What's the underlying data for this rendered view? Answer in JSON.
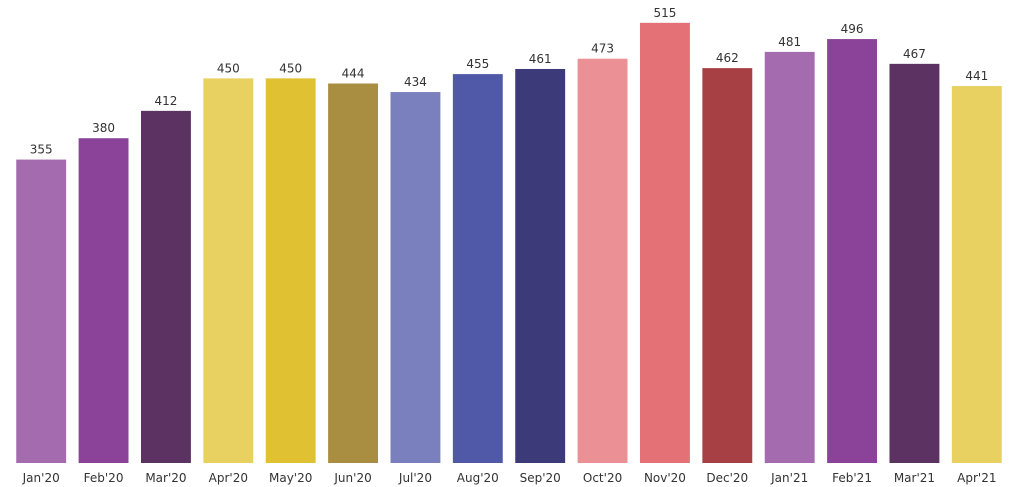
{
  "chart_data": {
    "type": "bar",
    "categories": [
      "Jan'20",
      "Feb'20",
      "Mar'20",
      "Apr'20",
      "May'20",
      "Jun'20",
      "Jul'20",
      "Aug'20",
      "Sep'20",
      "Oct'20",
      "Nov'20",
      "Dec'20",
      "Jan'21",
      "Feb'21",
      "Mar'21",
      "Apr'21"
    ],
    "values": [
      355,
      380,
      412,
      450,
      450,
      444,
      434,
      455,
      461,
      473,
      515,
      462,
      481,
      496,
      467,
      441
    ],
    "colors": [
      "#a46cae",
      "#8b4399",
      "#5c3263",
      "#e8d160",
      "#dfc132",
      "#a98d40",
      "#7a80bd",
      "#5059a8",
      "#3c3a78",
      "#eb9196",
      "#e37176",
      "#a64045",
      "#a46cae",
      "#8b4399",
      "#5c3263",
      "#e8d160"
    ],
    "title": "",
    "xlabel": "",
    "ylabel": "",
    "ylim": [
      0,
      530
    ],
    "grid": false,
    "legend": "none",
    "data_labels": true
  }
}
